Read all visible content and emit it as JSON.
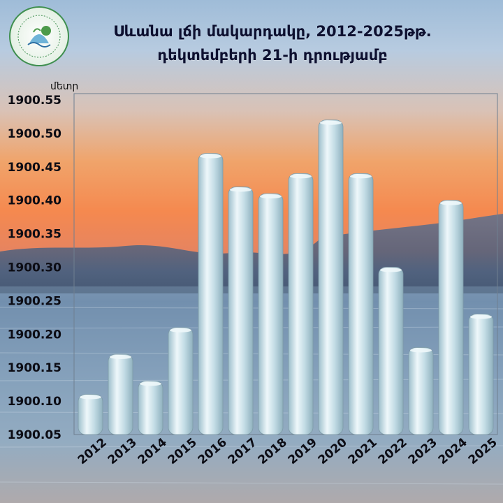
{
  "title_line1": "Սևանա լճի մակարդակը, 2012-2025թթ.",
  "title_line2": "դեկտեմբերի 21-ի դրությամբ",
  "colors": {
    "bar": "#c4dde6",
    "bar_highlight": "#eef7fa",
    "bar_shadow": "#8fb1be",
    "sky_top": "#a9c4de",
    "sky_sunset": "#f39a5a",
    "water": "#6f8fad"
  },
  "chart_data": {
    "type": "bar",
    "categories": [
      "2012",
      "2013",
      "2014",
      "2015",
      "2016",
      "2017",
      "2018",
      "2019",
      "2020",
      "2021",
      "2022",
      "2023",
      "2024",
      "2025"
    ],
    "values": [
      1900.11,
      1900.17,
      1900.13,
      1900.21,
      1900.47,
      1900.42,
      1900.41,
      1900.44,
      1900.52,
      1900.44,
      1900.3,
      1900.18,
      1900.4,
      1900.23
    ],
    "ylabel": "մետր",
    "ylim": [
      1900.05,
      1900.55
    ],
    "yticks": [
      "1900.05",
      "1900.10",
      "1900.15",
      "1900.20",
      "1900.25",
      "1900.30",
      "1900.35",
      "1900.40",
      "1900.45",
      "1900.50",
      "1900.55"
    ],
    "grid": false,
    "legend": "none"
  }
}
